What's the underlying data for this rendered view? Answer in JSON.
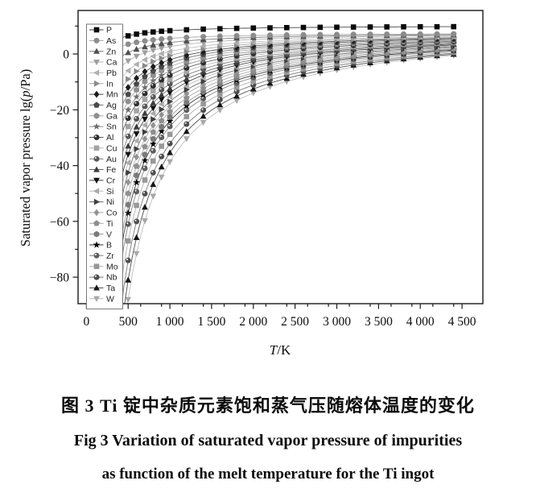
{
  "figure": {
    "caption_zh": "图 3  Ti 锭中杂质元素饱和蒸气压随熔体温度的变化",
    "caption_en_line1": "Fig 3  Variation of saturated vapor pressure of impurities",
    "caption_en_line2": "as function of the melt temperature for the Ti ingot"
  },
  "chart_data": {
    "type": "line",
    "title": "",
    "xlabel": "T/K",
    "ylabel": "Saturated vapor pressure lg(p/Pa)",
    "xlabel_parts": [
      {
        "t": "T",
        "i": true
      },
      {
        "t": "/K",
        "i": false
      }
    ],
    "ylabel_parts": [
      {
        "t": "Saturated vapor pressure lg(",
        "i": false
      },
      {
        "t": "p",
        "i": true
      },
      {
        "t": "/Pa)",
        "i": false
      }
    ],
    "x_axis": {
      "range_K": [
        -100,
        4750
      ],
      "major_ticks": [
        0,
        500,
        1000,
        1500,
        2000,
        2500,
        3000,
        3500,
        4000,
        4500
      ],
      "major_labels": [
        "0",
        "500",
        "1 000",
        "1 500",
        "2 000",
        "2 500",
        "3 000",
        "3 500",
        "4 000",
        "4 500"
      ],
      "minor_step": 250
    },
    "y_axis": {
      "range": [
        -89.5,
        15.6
      ],
      "major_ticks": [
        0,
        -20,
        -40,
        -60,
        -80
      ],
      "major_labels": [
        "0",
        "−20",
        "−40",
        "−60",
        "−80"
      ],
      "minor_step": 10
    },
    "grid": "off",
    "legend_position": "inside-top-left",
    "model": "lg(p/Pa) = A − B/T (straight line in 1/T) through anchors (500 K, y500) and (4400 K, y4400); curves clipped at plot frame",
    "marker_temperatures_K": [
      300,
      400,
      500,
      600,
      700,
      800,
      900,
      1000,
      1200,
      1400,
      1600,
      1800,
      2000,
      2200,
      2400,
      2600,
      2800,
      3000,
      3200,
      3400,
      3600,
      3800,
      4000,
      4200,
      4400
    ],
    "series": [
      {
        "name": "P",
        "marker": "square",
        "color": "#0a0a0a",
        "y500": 6.5,
        "y4400": 9.8
      },
      {
        "name": "As",
        "marker": "circle",
        "color": "#8c8c8c",
        "y500": 3.5,
        "y4400": 7.2
      },
      {
        "name": "Zn",
        "marker": "tri-up",
        "color": "#4f4f4f",
        "y500": 0.5,
        "y4400": 6.9
      },
      {
        "name": "Ca",
        "marker": "tri-down",
        "color": "#9e9e9e",
        "y500": -2.5,
        "y4400": 6.6
      },
      {
        "name": "Pb",
        "marker": "tri-left",
        "color": "#b0b0b0",
        "y500": -6,
        "y4400": 6.2
      },
      {
        "name": "In",
        "marker": "tri-right",
        "color": "#8a8a8a",
        "y500": -9,
        "y4400": 5.9
      },
      {
        "name": "Mn",
        "marker": "diamond",
        "color": "#1c1c1c",
        "y500": -12,
        "y4400": 5.6
      },
      {
        "name": "Ag",
        "marker": "pentagon",
        "color": "#4a4a4a",
        "y500": -14.5,
        "y4400": 5.3
      },
      {
        "name": "Ga",
        "marker": "hexagon",
        "color": "#8f8f8f",
        "y500": -17,
        "y4400": 5.0
      },
      {
        "name": "Sn",
        "marker": "star",
        "color": "#6e6e6e",
        "y500": -20,
        "y4400": 4.7
      },
      {
        "name": "Al",
        "marker": "sphere",
        "color": "#2e2e2e",
        "y500": -23,
        "y4400": 4.4
      },
      {
        "name": "Cu",
        "marker": "square",
        "color": "#a3a3a3",
        "y500": -26,
        "y4400": 4.1
      },
      {
        "name": "Au",
        "marker": "sphere",
        "color": "#565656",
        "y500": -29.5,
        "y4400": 3.8
      },
      {
        "name": "Fe",
        "marker": "tri-up",
        "color": "#3c3c3c",
        "y500": -33,
        "y4400": 3.5
      },
      {
        "name": "Cr",
        "marker": "tri-down",
        "color": "#111111",
        "y500": -36,
        "y4400": 3.2
      },
      {
        "name": "Si",
        "marker": "tri-left",
        "color": "#ababab",
        "y500": -39,
        "y4400": 2.9
      },
      {
        "name": "Ni",
        "marker": "tri-right",
        "color": "#3f3f3f",
        "y500": -42.5,
        "y4400": 2.6
      },
      {
        "name": "Co",
        "marker": "diamond",
        "color": "#939393",
        "y500": -46,
        "y4400": 2.3
      },
      {
        "name": "Ti",
        "marker": "pentagon",
        "color": "#8e8e8e",
        "y500": -50,
        "y4400": 2.0
      },
      {
        "name": "V",
        "marker": "hexagon",
        "color": "#7a7a7a",
        "y500": -54,
        "y4400": 1.7
      },
      {
        "name": "B",
        "marker": "star",
        "color": "#000000",
        "y500": -57,
        "y4400": 1.4
      },
      {
        "name": "Zr",
        "marker": "sphere",
        "color": "#5e5e5e",
        "y500": -61,
        "y4400": 1.1
      },
      {
        "name": "Mo",
        "marker": "square",
        "color": "#989898",
        "y500": -67,
        "y4400": 0.7
      },
      {
        "name": "Nb",
        "marker": "sphere",
        "color": "#4e4e4e",
        "y500": -74,
        "y4400": 0.3
      },
      {
        "name": "Ta",
        "marker": "tri-up",
        "color": "#161616",
        "y500": -81,
        "y4400": -0.1
      },
      {
        "name": "W",
        "marker": "tri-down",
        "color": "#a8a8a8",
        "y500": -88,
        "y4400": -0.5
      }
    ]
  }
}
